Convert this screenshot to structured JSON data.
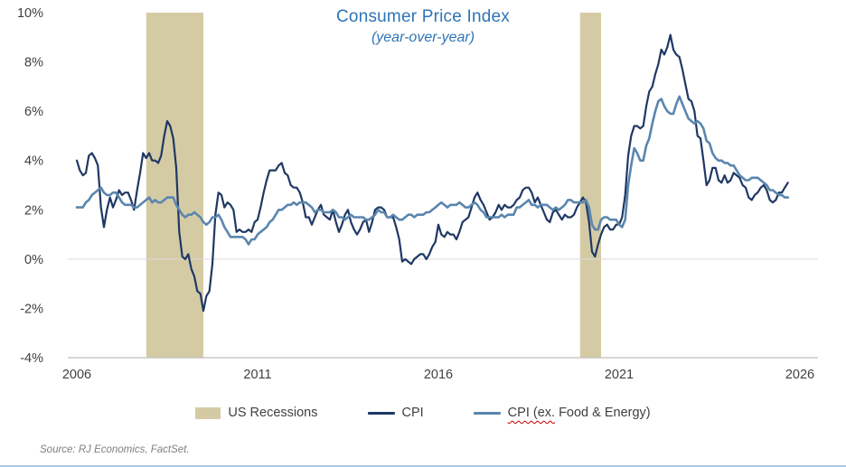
{
  "title": {
    "main": "Consumer Price Index",
    "subtitle": "(year-over-year)"
  },
  "source": "Source: RJ Economics, FactSet.",
  "legend": {
    "items": [
      {
        "label": "US Recessions",
        "type": "band"
      },
      {
        "label": "CPI",
        "type": "line"
      },
      {
        "label_flagged": "CPI (ex.",
        "label_rest": " Food & Energy)",
        "type": "line"
      }
    ]
  },
  "colors": {
    "title": "#2E74B5",
    "cpi_line": "#1F3864",
    "core_line": "#5A86AE",
    "recession_band": "#D4CBA5",
    "axis_text": "#404040",
    "gridline": "#D9D9D9",
    "axis_line": "#BFBFBF",
    "source_text": "#7F7F7F",
    "squiggle": "#C00000"
  },
  "chart_data": {
    "type": "line",
    "title": "Consumer Price Index",
    "subtitle": "(year-over-year)",
    "x_start_year": 2006.0,
    "x_interval": "monthly",
    "x_axis": {
      "range": [
        2006,
        2026
      ],
      "ticks": [
        2006,
        2011,
        2016,
        2021,
        2026
      ]
    },
    "y_axis": {
      "range": [
        -4,
        10
      ],
      "ticks": [
        10,
        8,
        6,
        4,
        2,
        0,
        -2,
        -4
      ],
      "tick_suffix": "%"
    },
    "grid": "zero-line-only",
    "legend_position": "bottom",
    "recessions": [
      {
        "start": 2007.92,
        "end": 2009.5
      },
      {
        "start": 2019.92,
        "end": 2020.5
      }
    ],
    "series": [
      {
        "name": "CPI",
        "color": "#1F3864",
        "values": [
          4.0,
          3.6,
          3.4,
          3.5,
          4.2,
          4.3,
          4.1,
          3.8,
          2.1,
          1.3,
          2.0,
          2.5,
          2.1,
          2.4,
          2.8,
          2.6,
          2.7,
          2.7,
          2.4,
          2.0,
          2.8,
          3.5,
          4.3,
          4.1,
          4.3,
          4.0,
          4.0,
          3.9,
          4.2,
          5.0,
          5.6,
          5.4,
          4.9,
          3.7,
          1.1,
          0.1,
          0.0,
          0.2,
          -0.4,
          -0.7,
          -1.3,
          -1.4,
          -2.1,
          -1.5,
          -1.3,
          -0.2,
          1.8,
          2.7,
          2.6,
          2.1,
          2.3,
          2.2,
          2.0,
          1.1,
          1.2,
          1.1,
          1.1,
          1.2,
          1.1,
          1.5,
          1.6,
          2.1,
          2.7,
          3.2,
          3.6,
          3.6,
          3.6,
          3.8,
          3.9,
          3.5,
          3.4,
          3.0,
          2.9,
          2.9,
          2.7,
          2.3,
          1.7,
          1.7,
          1.4,
          1.7,
          2.0,
          2.2,
          1.8,
          1.7,
          1.6,
          2.0,
          1.5,
          1.1,
          1.4,
          1.8,
          2.0,
          1.5,
          1.2,
          1.0,
          1.2,
          1.5,
          1.6,
          1.1,
          1.5,
          2.0,
          2.1,
          2.1,
          2.0,
          1.7,
          1.7,
          1.7,
          1.3,
          0.8,
          -0.1,
          0.0,
          -0.1,
          -0.2,
          0.0,
          0.1,
          0.2,
          0.2,
          0.0,
          0.2,
          0.5,
          0.7,
          1.4,
          1.0,
          0.9,
          1.1,
          1.0,
          1.0,
          0.8,
          1.1,
          1.5,
          1.6,
          1.7,
          2.1,
          2.5,
          2.7,
          2.4,
          2.2,
          1.9,
          1.6,
          1.7,
          1.9,
          2.2,
          2.0,
          2.2,
          2.1,
          2.1,
          2.2,
          2.4,
          2.5,
          2.8,
          2.9,
          2.9,
          2.7,
          2.3,
          2.5,
          2.2,
          1.9,
          1.6,
          1.5,
          1.9,
          2.0,
          1.8,
          1.6,
          1.8,
          1.7,
          1.7,
          1.8,
          2.1,
          2.3,
          2.5,
          2.3,
          1.5,
          0.3,
          0.1,
          0.6,
          1.0,
          1.3,
          1.4,
          1.2,
          1.2,
          1.4,
          1.4,
          1.7,
          2.6,
          4.2,
          5.0,
          5.4,
          5.4,
          5.3,
          5.4,
          6.2,
          6.8,
          7.0,
          7.5,
          7.9,
          8.5,
          8.3,
          8.6,
          9.1,
          8.5,
          8.3,
          8.2,
          7.7,
          7.1,
          6.5,
          6.4,
          6.0,
          5.0,
          4.9,
          4.0,
          3.0,
          3.2,
          3.7,
          3.7,
          3.2,
          3.1,
          3.4,
          3.1,
          3.2,
          3.5,
          3.4,
          3.3,
          3.0,
          2.9,
          2.5,
          2.4,
          2.6,
          2.7,
          2.9,
          3.0,
          2.8,
          2.4,
          2.3,
          2.4,
          2.7,
          2.7,
          2.9,
          3.1
        ]
      },
      {
        "name": "CPI (ex. Food & Energy)",
        "color": "#5A86AE",
        "values": [
          2.1,
          2.1,
          2.1,
          2.3,
          2.4,
          2.6,
          2.7,
          2.8,
          2.9,
          2.7,
          2.6,
          2.6,
          2.7,
          2.7,
          2.5,
          2.3,
          2.2,
          2.2,
          2.2,
          2.1,
          2.1,
          2.2,
          2.3,
          2.4,
          2.5,
          2.3,
          2.4,
          2.3,
          2.3,
          2.4,
          2.5,
          2.5,
          2.5,
          2.2,
          2.0,
          1.8,
          1.7,
          1.8,
          1.8,
          1.9,
          1.8,
          1.7,
          1.5,
          1.4,
          1.5,
          1.7,
          1.7,
          1.8,
          1.6,
          1.3,
          1.1,
          0.9,
          0.9,
          0.9,
          0.9,
          0.9,
          0.8,
          0.6,
          0.8,
          0.8,
          1.0,
          1.1,
          1.2,
          1.3,
          1.5,
          1.6,
          1.8,
          2.0,
          2.0,
          2.1,
          2.2,
          2.2,
          2.3,
          2.2,
          2.3,
          2.3,
          2.3,
          2.2,
          2.1,
          1.9,
          2.0,
          2.0,
          1.9,
          1.9,
          1.9,
          2.0,
          1.9,
          1.7,
          1.7,
          1.6,
          1.7,
          1.8,
          1.7,
          1.7,
          1.7,
          1.7,
          1.6,
          1.6,
          1.7,
          1.8,
          2.0,
          1.9,
          1.9,
          1.7,
          1.7,
          1.8,
          1.7,
          1.6,
          1.6,
          1.7,
          1.8,
          1.8,
          1.7,
          1.8,
          1.8,
          1.8,
          1.9,
          1.9,
          2.0,
          2.1,
          2.2,
          2.3,
          2.2,
          2.1,
          2.2,
          2.2,
          2.2,
          2.3,
          2.2,
          2.1,
          2.1,
          2.2,
          2.3,
          2.2,
          2.0,
          1.9,
          1.7,
          1.7,
          1.7,
          1.7,
          1.7,
          1.8,
          1.7,
          1.8,
          1.8,
          1.8,
          2.1,
          2.1,
          2.2,
          2.3,
          2.4,
          2.2,
          2.2,
          2.1,
          2.2,
          2.2,
          2.2,
          2.1,
          2.0,
          2.1,
          2.0,
          2.1,
          2.2,
          2.4,
          2.4,
          2.3,
          2.3,
          2.3,
          2.3,
          2.4,
          2.1,
          1.4,
          1.2,
          1.2,
          1.6,
          1.7,
          1.7,
          1.6,
          1.6,
          1.6,
          1.4,
          1.3,
          1.6,
          3.0,
          3.8,
          4.5,
          4.3,
          4.0,
          4.0,
          4.6,
          4.9,
          5.5,
          6.0,
          6.4,
          6.5,
          6.2,
          6.0,
          5.9,
          5.9,
          6.3,
          6.6,
          6.3,
          6.0,
          5.7,
          5.6,
          5.5,
          5.6,
          5.5,
          5.3,
          4.8,
          4.7,
          4.3,
          4.1,
          4.0,
          4.0,
          3.9,
          3.9,
          3.8,
          3.8,
          3.6,
          3.4,
          3.3,
          3.2,
          3.2,
          3.3,
          3.3,
          3.3,
          3.2,
          3.1,
          3.0,
          2.8,
          2.8,
          2.7,
          2.6,
          2.6,
          2.5,
          2.5
        ]
      }
    ]
  }
}
